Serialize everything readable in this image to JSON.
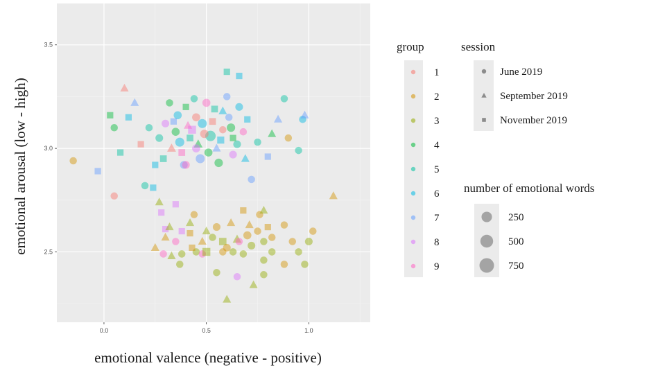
{
  "chart_data": {
    "type": "scatter",
    "xlabel": "emotional valence (negative - positive)",
    "ylabel": "emotional arousal (low - high)",
    "xlim": [
      -0.23,
      1.3
    ],
    "ylim": [
      2.16,
      3.7
    ],
    "x_ticks": [
      {
        "value": 0.0,
        "label": "0.0"
      },
      {
        "value": 0.5,
        "label": "0.5"
      },
      {
        "value": 1.0,
        "label": "1.0"
      }
    ],
    "y_ticks": [
      {
        "value": 2.5,
        "label": "2.5"
      },
      {
        "value": 3.0,
        "label": "3.0"
      },
      {
        "value": 3.5,
        "label": "3.5"
      }
    ],
    "grid": true,
    "panel_background": "#ebebeb",
    "point_alpha": 0.45,
    "legend_group": {
      "title": "group",
      "entries": [
        {
          "label": "1",
          "color": "#F8766D"
        },
        {
          "label": "2",
          "color": "#D39200"
        },
        {
          "label": "3",
          "color": "#93AA00"
        },
        {
          "label": "4",
          "color": "#00BA38"
        },
        {
          "label": "5",
          "color": "#00C19F"
        },
        {
          "label": "6",
          "color": "#00B9E3"
        },
        {
          "label": "7",
          "color": "#619CFF"
        },
        {
          "label": "8",
          "color": "#DB72FB"
        },
        {
          "label": "9",
          "color": "#FF61C3"
        }
      ]
    },
    "legend_session": {
      "title": "session",
      "entries": [
        {
          "label": "June 2019",
          "shape": "circle"
        },
        {
          "label": "September 2019",
          "shape": "triangle"
        },
        {
          "label": "November 2019",
          "shape": "square"
        }
      ]
    },
    "legend_size": {
      "title": "number of emotional words",
      "entries": [
        {
          "label": "250",
          "value": 250
        },
        {
          "label": "500",
          "value": 500
        },
        {
          "label": "750",
          "value": 750
        }
      ]
    },
    "points": [
      {
        "x": 0.35,
        "y": 3.08,
        "group": "4",
        "shape": "circle",
        "size": 350
      },
      {
        "x": 0.42,
        "y": 3.05,
        "group": "5",
        "shape": "square",
        "size": 300
      },
      {
        "x": 0.48,
        "y": 3.12,
        "group": "6",
        "shape": "circle",
        "size": 500
      },
      {
        "x": 0.55,
        "y": 3.0,
        "group": "7",
        "shape": "triangle",
        "size": 250
      },
      {
        "x": 0.62,
        "y": 3.1,
        "group": "4",
        "shape": "circle",
        "size": 400
      },
      {
        "x": 0.38,
        "y": 2.98,
        "group": "9",
        "shape": "square",
        "size": 300
      },
      {
        "x": 0.45,
        "y": 3.15,
        "group": "1",
        "shape": "circle",
        "size": 350
      },
      {
        "x": 0.52,
        "y": 3.06,
        "group": "5",
        "shape": "circle",
        "size": 750
      },
      {
        "x": 0.58,
        "y": 3.18,
        "group": "6",
        "shape": "triangle",
        "size": 250
      },
      {
        "x": 0.3,
        "y": 3.12,
        "group": "8",
        "shape": "circle",
        "size": 300
      },
      {
        "x": 0.4,
        "y": 3.2,
        "group": "4",
        "shape": "square",
        "size": 250
      },
      {
        "x": 0.47,
        "y": 2.95,
        "group": "7",
        "shape": "circle",
        "size": 500
      },
      {
        "x": 0.65,
        "y": 3.02,
        "group": "5",
        "shape": "circle",
        "size": 300
      },
      {
        "x": 0.7,
        "y": 3.14,
        "group": "6",
        "shape": "square",
        "size": 250
      },
      {
        "x": 0.33,
        "y": 3.0,
        "group": "1",
        "shape": "triangle",
        "size": 300
      },
      {
        "x": 0.5,
        "y": 3.22,
        "group": "9",
        "shape": "circle",
        "size": 350
      },
      {
        "x": 0.56,
        "y": 2.93,
        "group": "4",
        "shape": "circle",
        "size": 400
      },
      {
        "x": 0.43,
        "y": 3.09,
        "group": "8",
        "shape": "square",
        "size": 500
      },
      {
        "x": 0.6,
        "y": 3.25,
        "group": "7",
        "shape": "circle",
        "size": 250
      },
      {
        "x": 0.27,
        "y": 3.05,
        "group": "5",
        "shape": "circle",
        "size": 300
      },
      {
        "x": 0.36,
        "y": 3.16,
        "group": "6",
        "shape": "circle",
        "size": 350
      },
      {
        "x": 0.53,
        "y": 3.13,
        "group": "1",
        "shape": "square",
        "size": 300
      },
      {
        "x": 0.46,
        "y": 3.02,
        "group": "4",
        "shape": "triangle",
        "size": 300
      },
      {
        "x": 0.68,
        "y": 3.08,
        "group": "9",
        "shape": "circle",
        "size": 250
      },
      {
        "x": 0.39,
        "y": 2.92,
        "group": "7",
        "shape": "circle",
        "size": 300
      },
      {
        "x": 0.57,
        "y": 3.04,
        "group": "6",
        "shape": "square",
        "size": 350
      },
      {
        "x": 0.44,
        "y": 3.24,
        "group": "5",
        "shape": "circle",
        "size": 250
      },
      {
        "x": 0.63,
        "y": 2.97,
        "group": "8",
        "shape": "circle",
        "size": 300
      },
      {
        "x": 0.32,
        "y": 3.22,
        "group": "4",
        "shape": "circle",
        "size": 250
      },
      {
        "x": 0.49,
        "y": 3.07,
        "group": "1",
        "shape": "circle",
        "size": 400
      },
      {
        "x": 0.41,
        "y": 3.11,
        "group": "9",
        "shape": "triangle",
        "size": 250
      },
      {
        "x": 0.54,
        "y": 3.19,
        "group": "5",
        "shape": "square",
        "size": 300
      },
      {
        "x": 0.37,
        "y": 3.03,
        "group": "6",
        "shape": "circle",
        "size": 500
      },
      {
        "x": 0.61,
        "y": 3.15,
        "group": "7",
        "shape": "circle",
        "size": 250
      },
      {
        "x": 0.51,
        "y": 2.98,
        "group": "4",
        "shape": "circle",
        "size": 350
      },
      {
        "x": 0.29,
        "y": 2.95,
        "group": "5",
        "shape": "square",
        "size": 300
      },
      {
        "x": 0.66,
        "y": 3.2,
        "group": "6",
        "shape": "circle",
        "size": 300
      },
      {
        "x": 0.45,
        "y": 3.0,
        "group": "8",
        "shape": "circle",
        "size": 350
      },
      {
        "x": 0.58,
        "y": 3.09,
        "group": "1",
        "shape": "circle",
        "size": 250
      },
      {
        "x": 0.34,
        "y": 3.13,
        "group": "7",
        "shape": "square",
        "size": 250
      },
      {
        "x": 0.22,
        "y": 3.1,
        "group": "5",
        "shape": "circle",
        "size": 250
      },
      {
        "x": 0.12,
        "y": 3.15,
        "group": "6",
        "shape": "square",
        "size": 250
      },
      {
        "x": 0.05,
        "y": 3.1,
        "group": "4",
        "shape": "circle",
        "size": 250
      },
      {
        "x": 0.18,
        "y": 3.02,
        "group": "1",
        "shape": "square",
        "size": 250
      },
      {
        "x": 0.08,
        "y": 2.98,
        "group": "5",
        "shape": "square",
        "size": 250
      },
      {
        "x": 0.15,
        "y": 3.22,
        "group": "7",
        "shape": "triangle",
        "size": 250
      },
      {
        "x": 0.03,
        "y": 3.16,
        "group": "4",
        "shape": "square",
        "size": 250
      },
      {
        "x": -0.15,
        "y": 2.94,
        "group": "2",
        "shape": "circle",
        "size": 250
      },
      {
        "x": -0.03,
        "y": 2.89,
        "group": "7",
        "shape": "square",
        "size": 250
      },
      {
        "x": 0.05,
        "y": 2.77,
        "group": "1",
        "shape": "circle",
        "size": 250
      },
      {
        "x": 0.1,
        "y": 3.29,
        "group": "1",
        "shape": "triangle",
        "size": 250
      },
      {
        "x": 0.25,
        "y": 2.92,
        "group": "6",
        "shape": "square",
        "size": 250
      },
      {
        "x": 0.2,
        "y": 2.82,
        "group": "5",
        "shape": "circle",
        "size": 250
      },
      {
        "x": 0.24,
        "y": 2.81,
        "group": "6",
        "shape": "square",
        "size": 250
      },
      {
        "x": 0.85,
        "y": 3.14,
        "group": "7",
        "shape": "triangle",
        "size": 250
      },
      {
        "x": 0.9,
        "y": 3.05,
        "group": "2",
        "shape": "circle",
        "size": 250
      },
      {
        "x": 0.97,
        "y": 3.14,
        "group": "6",
        "shape": "circle",
        "size": 250
      },
      {
        "x": 0.98,
        "y": 3.16,
        "group": "7",
        "shape": "triangle",
        "size": 250
      },
      {
        "x": 0.88,
        "y": 3.24,
        "group": "5",
        "shape": "circle",
        "size": 250
      },
      {
        "x": 0.95,
        "y": 2.99,
        "group": "5",
        "shape": "circle",
        "size": 250
      },
      {
        "x": 1.12,
        "y": 2.77,
        "group": "2",
        "shape": "triangle",
        "size": 250
      },
      {
        "x": 0.8,
        "y": 2.96,
        "group": "7",
        "shape": "square",
        "size": 250
      },
      {
        "x": 0.6,
        "y": 3.37,
        "group": "5",
        "shape": "square",
        "size": 250
      },
      {
        "x": 0.66,
        "y": 3.35,
        "group": "6",
        "shape": "square",
        "size": 250
      },
      {
        "x": 0.82,
        "y": 3.07,
        "group": "4",
        "shape": "triangle",
        "size": 250
      },
      {
        "x": 0.72,
        "y": 2.85,
        "group": "7",
        "shape": "circle",
        "size": 250
      },
      {
        "x": 0.75,
        "y": 3.03,
        "group": "5",
        "shape": "circle",
        "size": 250
      },
      {
        "x": 0.4,
        "y": 2.92,
        "group": "9",
        "shape": "circle",
        "size": 300
      },
      {
        "x": 0.63,
        "y": 3.05,
        "group": "4",
        "shape": "square",
        "size": 250
      },
      {
        "x": 0.69,
        "y": 2.95,
        "group": "6",
        "shape": "triangle",
        "size": 250
      },
      {
        "x": 0.3,
        "y": 2.61,
        "group": "8",
        "shape": "square",
        "size": 250
      },
      {
        "x": 0.28,
        "y": 2.69,
        "group": "8",
        "shape": "square",
        "size": 250
      },
      {
        "x": 0.38,
        "y": 2.6,
        "group": "8",
        "shape": "square",
        "size": 250
      },
      {
        "x": 0.42,
        "y": 2.59,
        "group": "2",
        "shape": "square",
        "size": 250
      },
      {
        "x": 0.44,
        "y": 2.68,
        "group": "2",
        "shape": "circle",
        "size": 250
      },
      {
        "x": 0.5,
        "y": 2.6,
        "group": "3",
        "shape": "triangle",
        "size": 250
      },
      {
        "x": 0.55,
        "y": 2.62,
        "group": "2",
        "shape": "circle",
        "size": 300
      },
      {
        "x": 0.58,
        "y": 2.55,
        "group": "3",
        "shape": "square",
        "size": 400
      },
      {
        "x": 0.6,
        "y": 2.52,
        "group": "2",
        "shape": "circle",
        "size": 300
      },
      {
        "x": 0.65,
        "y": 2.56,
        "group": "3",
        "shape": "triangle",
        "size": 300
      },
      {
        "x": 0.7,
        "y": 2.58,
        "group": "2",
        "shape": "circle",
        "size": 350
      },
      {
        "x": 0.72,
        "y": 2.53,
        "group": "3",
        "shape": "circle",
        "size": 300
      },
      {
        "x": 0.75,
        "y": 2.6,
        "group": "2",
        "shape": "circle",
        "size": 250
      },
      {
        "x": 0.68,
        "y": 2.49,
        "group": "3",
        "shape": "circle",
        "size": 250
      },
      {
        "x": 0.62,
        "y": 2.64,
        "group": "2",
        "shape": "triangle",
        "size": 250
      },
      {
        "x": 0.78,
        "y": 2.55,
        "group": "3",
        "shape": "circle",
        "size": 250
      },
      {
        "x": 0.82,
        "y": 2.57,
        "group": "2",
        "shape": "circle",
        "size": 250
      },
      {
        "x": 0.53,
        "y": 2.57,
        "group": "3",
        "shape": "circle",
        "size": 250
      },
      {
        "x": 0.48,
        "y": 2.55,
        "group": "2",
        "shape": "triangle",
        "size": 250
      },
      {
        "x": 0.45,
        "y": 2.5,
        "group": "3",
        "shape": "circle",
        "size": 250
      },
      {
        "x": 0.35,
        "y": 2.55,
        "group": "9",
        "shape": "circle",
        "size": 250
      },
      {
        "x": 0.33,
        "y": 2.48,
        "group": "3",
        "shape": "triangle",
        "size": 250
      },
      {
        "x": 0.25,
        "y": 2.52,
        "group": "2",
        "shape": "triangle",
        "size": 250
      },
      {
        "x": 0.3,
        "y": 2.57,
        "group": "2",
        "shape": "triangle",
        "size": 250
      },
      {
        "x": 0.38,
        "y": 2.49,
        "group": "3",
        "shape": "circle",
        "size": 250
      },
      {
        "x": 0.43,
        "y": 2.52,
        "group": "2",
        "shape": "square",
        "size": 250
      },
      {
        "x": 0.48,
        "y": 2.49,
        "group": "9",
        "shape": "circle",
        "size": 250
      },
      {
        "x": 0.58,
        "y": 2.5,
        "group": "2",
        "shape": "circle",
        "size": 250
      },
      {
        "x": 0.63,
        "y": 2.5,
        "group": "3",
        "shape": "circle",
        "size": 250
      },
      {
        "x": 0.71,
        "y": 2.63,
        "group": "2",
        "shape": "triangle",
        "size": 250
      },
      {
        "x": 0.76,
        "y": 2.68,
        "group": "2",
        "shape": "circle",
        "size": 250
      },
      {
        "x": 0.78,
        "y": 2.46,
        "group": "3",
        "shape": "circle",
        "size": 250
      },
      {
        "x": 0.8,
        "y": 2.62,
        "group": "2",
        "shape": "square",
        "size": 250
      },
      {
        "x": 0.82,
        "y": 2.5,
        "group": "3",
        "shape": "circle",
        "size": 250
      },
      {
        "x": 0.88,
        "y": 2.63,
        "group": "2",
        "shape": "circle",
        "size": 250
      },
      {
        "x": 0.92,
        "y": 2.55,
        "group": "2",
        "shape": "circle",
        "size": 250
      },
      {
        "x": 0.95,
        "y": 2.5,
        "group": "3",
        "shape": "circle",
        "size": 250
      },
      {
        "x": 1.0,
        "y": 2.55,
        "group": "3",
        "shape": "circle",
        "size": 300
      },
      {
        "x": 1.02,
        "y": 2.6,
        "group": "2",
        "shape": "circle",
        "size": 250
      },
      {
        "x": 0.98,
        "y": 2.44,
        "group": "3",
        "shape": "circle",
        "size": 250
      },
      {
        "x": 0.6,
        "y": 2.27,
        "group": "3",
        "shape": "triangle",
        "size": 250
      },
      {
        "x": 0.55,
        "y": 2.4,
        "group": "3",
        "shape": "circle",
        "size": 250
      },
      {
        "x": 0.73,
        "y": 2.34,
        "group": "3",
        "shape": "triangle",
        "size": 250
      },
      {
        "x": 0.78,
        "y": 2.39,
        "group": "3",
        "shape": "circle",
        "size": 250
      },
      {
        "x": 0.65,
        "y": 2.38,
        "group": "8",
        "shape": "circle",
        "size": 250
      },
      {
        "x": 0.37,
        "y": 2.44,
        "group": "3",
        "shape": "circle",
        "size": 250
      },
      {
        "x": 0.29,
        "y": 2.49,
        "group": "9",
        "shape": "circle",
        "size": 250
      },
      {
        "x": 0.68,
        "y": 2.7,
        "group": "2",
        "shape": "square",
        "size": 250
      },
      {
        "x": 0.78,
        "y": 2.7,
        "group": "3",
        "shape": "triangle",
        "size": 250
      },
      {
        "x": 0.32,
        "y": 2.62,
        "group": "3",
        "shape": "triangle",
        "size": 250
      },
      {
        "x": 0.27,
        "y": 2.74,
        "group": "3",
        "shape": "triangle",
        "size": 250
      },
      {
        "x": 0.35,
        "y": 2.73,
        "group": "8",
        "shape": "square",
        "size": 250
      },
      {
        "x": 0.42,
        "y": 2.64,
        "group": "3",
        "shape": "triangle",
        "size": 250
      },
      {
        "x": 0.5,
        "y": 2.5,
        "group": "3",
        "shape": "square",
        "size": 500
      },
      {
        "x": 0.88,
        "y": 2.44,
        "group": "2",
        "shape": "circle",
        "size": 250
      },
      {
        "x": 0.66,
        "y": 2.55,
        "group": "9",
        "shape": "circle",
        "size": 250
      }
    ]
  }
}
